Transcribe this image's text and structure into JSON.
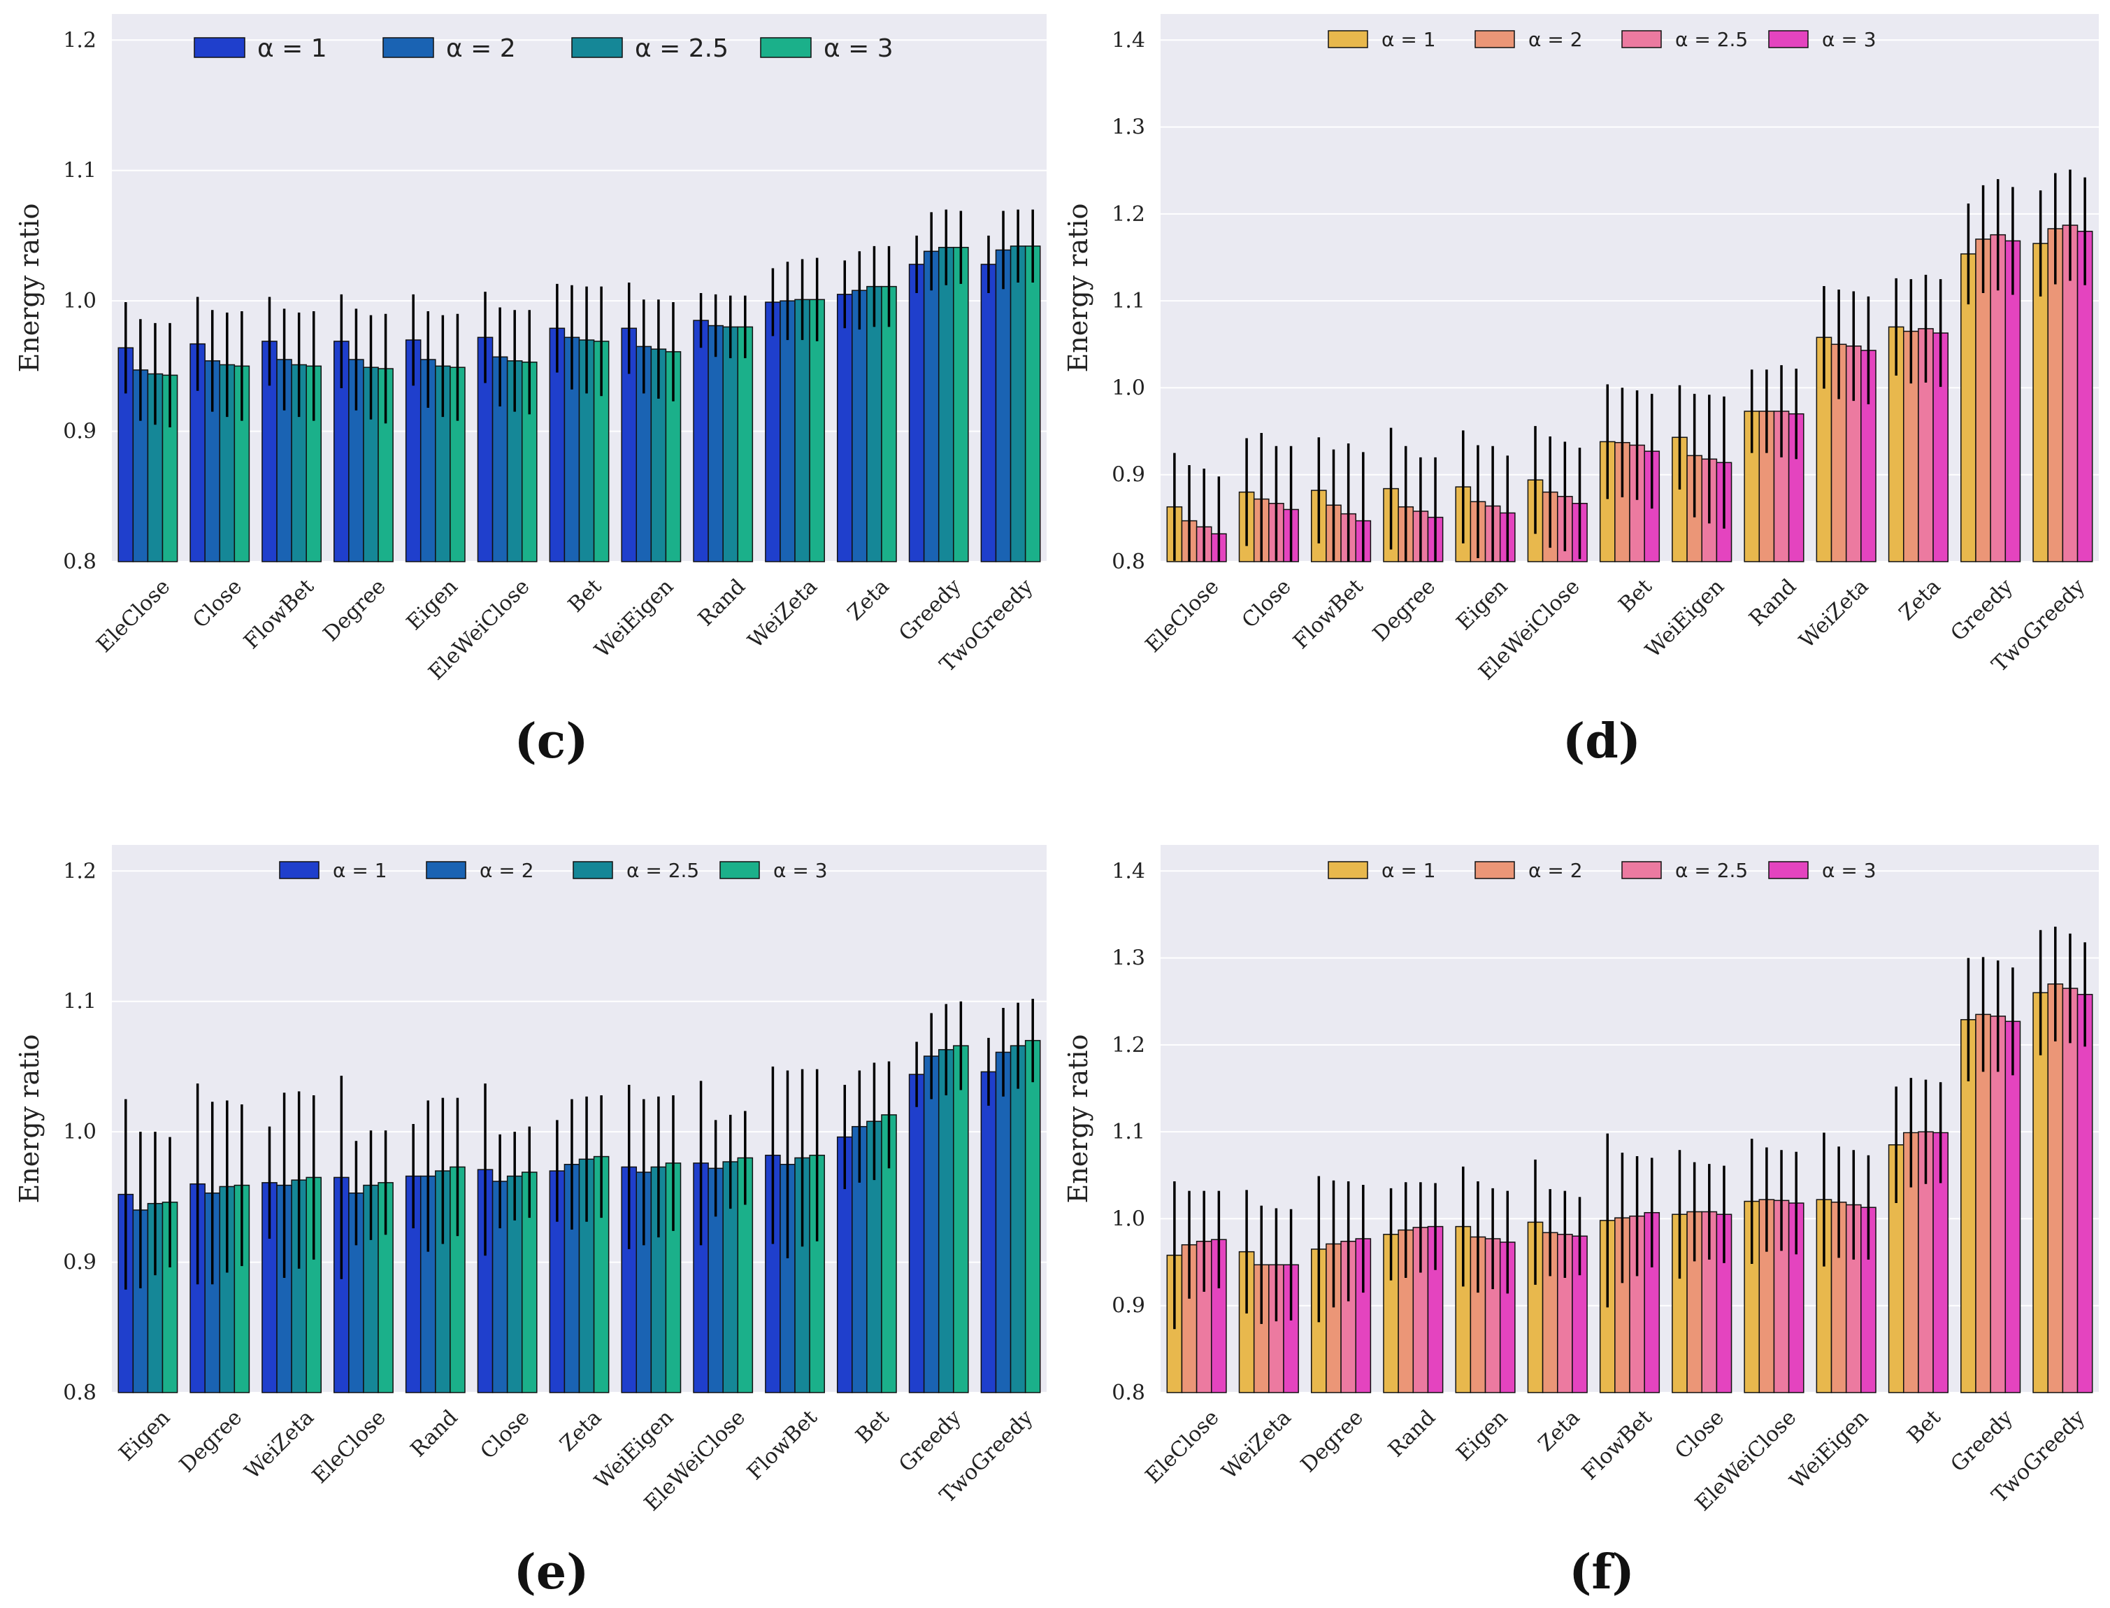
{
  "chart_data": [
    {
      "type": "bar",
      "panel_label": "(c)",
      "ylabel": "Energy ratio",
      "ylim": [
        0.8,
        1.22
      ],
      "yticks": [
        "0.8",
        "0.9",
        "1.0",
        "1.1",
        "1.2"
      ],
      "grid": true,
      "legend_position": "top",
      "categories": [
        "EleClose",
        "Close",
        "FlowBet",
        "Degree",
        "Eigen",
        "EleWeiClose",
        "Bet",
        "WeiEigen",
        "Rand",
        "WeiZeta",
        "Zeta",
        "Greedy",
        "TwoGreedy"
      ],
      "series": [
        {
          "name": "α = 1",
          "color": "#1f3fcc",
          "values": [
            0.964,
            0.967,
            0.969,
            0.969,
            0.97,
            0.972,
            0.979,
            0.979,
            0.985,
            0.999,
            1.005,
            1.028,
            1.028
          ],
          "errors": [
            0.035,
            0.036,
            0.034,
            0.036,
            0.035,
            0.035,
            0.034,
            0.035,
            0.021,
            0.026,
            0.026,
            0.022,
            0.022
          ]
        },
        {
          "name": "α = 2",
          "color": "#1a63b3",
          "values": [
            0.947,
            0.954,
            0.955,
            0.955,
            0.955,
            0.957,
            0.972,
            0.965,
            0.981,
            1.0,
            1.008,
            1.038,
            1.039
          ],
          "errors": [
            0.039,
            0.039,
            0.039,
            0.039,
            0.037,
            0.038,
            0.04,
            0.036,
            0.024,
            0.03,
            0.03,
            0.03,
            0.03
          ]
        },
        {
          "name": "α = 2.5",
          "color": "#158797",
          "values": [
            0.944,
            0.951,
            0.951,
            0.949,
            0.95,
            0.954,
            0.97,
            0.963,
            0.98,
            1.001,
            1.011,
            1.041,
            1.042
          ],
          "errors": [
            0.039,
            0.04,
            0.04,
            0.04,
            0.039,
            0.039,
            0.041,
            0.038,
            0.024,
            0.031,
            0.031,
            0.029,
            0.028
          ]
        },
        {
          "name": "α = 3",
          "color": "#1bb08a",
          "values": [
            0.943,
            0.95,
            0.95,
            0.948,
            0.949,
            0.953,
            0.969,
            0.961,
            0.98,
            1.001,
            1.011,
            1.041,
            1.042
          ],
          "errors": [
            0.04,
            0.042,
            0.042,
            0.042,
            0.041,
            0.04,
            0.042,
            0.038,
            0.024,
            0.032,
            0.031,
            0.028,
            0.028
          ]
        }
      ]
    },
    {
      "type": "bar",
      "panel_label": "(d)",
      "ylabel": "Energy ratio",
      "ylim": [
        0.8,
        1.43
      ],
      "yticks": [
        "0.8",
        "0.9",
        "1.0",
        "1.1",
        "1.2",
        "1.3",
        "1.4"
      ],
      "grid": true,
      "legend_position": "top",
      "categories": [
        "EleClose",
        "Close",
        "FlowBet",
        "Degree",
        "Eigen",
        "EleWeiClose",
        "Bet",
        "WeiEigen",
        "Rand",
        "WeiZeta",
        "Zeta",
        "Greedy",
        "TwoGreedy"
      ],
      "series": [
        {
          "name": "α = 1",
          "color": "#e8b84d",
          "values": [
            0.863,
            0.88,
            0.882,
            0.884,
            0.886,
            0.894,
            0.938,
            0.943,
            0.973,
            1.058,
            1.07,
            1.154,
            1.166
          ],
          "errors": [
            0.062,
            0.062,
            0.061,
            0.07,
            0.065,
            0.062,
            0.066,
            0.06,
            0.048,
            0.059,
            0.056,
            0.058,
            0.061
          ]
        },
        {
          "name": "α = 2",
          "color": "#eb9677",
          "values": [
            0.847,
            0.872,
            0.865,
            0.863,
            0.869,
            0.88,
            0.937,
            0.922,
            0.973,
            1.05,
            1.065,
            1.171,
            1.183
          ],
          "errors": [
            0.064,
            0.076,
            0.064,
            0.07,
            0.065,
            0.064,
            0.063,
            0.071,
            0.048,
            0.063,
            0.06,
            0.062,
            0.064
          ]
        },
        {
          "name": "α = 2.5",
          "color": "#ec7aa0",
          "values": [
            0.84,
            0.867,
            0.855,
            0.858,
            0.864,
            0.875,
            0.934,
            0.918,
            0.973,
            1.048,
            1.068,
            1.176,
            1.187
          ],
          "errors": [
            0.067,
            0.066,
            0.081,
            0.062,
            0.069,
            0.063,
            0.063,
            0.074,
            0.053,
            0.063,
            0.062,
            0.064,
            0.064
          ]
        },
        {
          "name": "α = 3",
          "color": "#e444bf",
          "values": [
            0.832,
            0.86,
            0.847,
            0.851,
            0.856,
            0.867,
            0.927,
            0.914,
            0.97,
            1.043,
            1.063,
            1.169,
            1.18
          ],
          "errors": [
            0.066,
            0.073,
            0.079,
            0.069,
            0.066,
            0.064,
            0.066,
            0.076,
            0.052,
            0.062,
            0.062,
            0.062,
            0.062
          ]
        }
      ]
    },
    {
      "type": "bar",
      "panel_label": "(e)",
      "ylabel": "Energy ratio",
      "ylim": [
        0.8,
        1.22
      ],
      "yticks": [
        "0.8",
        "0.9",
        "1.0",
        "1.1",
        "1.2"
      ],
      "grid": true,
      "legend_position": "top",
      "categories": [
        "Eigen",
        "Degree",
        "WeiZeta",
        "EleClose",
        "Rand",
        "Close",
        "Zeta",
        "WeiEigen",
        "EleWeiClose",
        "FlowBet",
        "Bet",
        "Greedy",
        "TwoGreedy"
      ],
      "series": [
        {
          "name": "α = 1",
          "color": "#1f3fcc",
          "values": [
            0.952,
            0.96,
            0.961,
            0.965,
            0.966,
            0.971,
            0.97,
            0.973,
            0.976,
            0.982,
            0.996,
            1.044,
            1.046
          ],
          "errors": [
            0.073,
            0.077,
            0.043,
            0.078,
            0.04,
            0.066,
            0.039,
            0.063,
            0.063,
            0.068,
            0.04,
            0.025,
            0.026
          ]
        },
        {
          "name": "α = 2",
          "color": "#1a63b3",
          "values": [
            0.94,
            0.953,
            0.959,
            0.953,
            0.966,
            0.962,
            0.975,
            0.969,
            0.972,
            0.975,
            1.004,
            1.058,
            1.061
          ],
          "errors": [
            0.06,
            0.07,
            0.071,
            0.04,
            0.058,
            0.036,
            0.05,
            0.056,
            0.037,
            0.072,
            0.043,
            0.033,
            0.034
          ]
        },
        {
          "name": "α = 2.5",
          "color": "#158797",
          "values": [
            0.945,
            0.958,
            0.963,
            0.959,
            0.97,
            0.966,
            0.979,
            0.973,
            0.977,
            0.98,
            1.008,
            1.063,
            1.066
          ],
          "errors": [
            0.055,
            0.066,
            0.068,
            0.042,
            0.056,
            0.034,
            0.048,
            0.054,
            0.036,
            0.068,
            0.045,
            0.035,
            0.033
          ]
        },
        {
          "name": "α = 3",
          "color": "#1bb08a",
          "values": [
            0.946,
            0.959,
            0.965,
            0.961,
            0.973,
            0.969,
            0.981,
            0.976,
            0.98,
            0.982,
            1.013,
            1.066,
            1.07
          ],
          "errors": [
            0.05,
            0.062,
            0.063,
            0.04,
            0.053,
            0.035,
            0.047,
            0.052,
            0.036,
            0.066,
            0.041,
            0.034,
            0.032
          ]
        }
      ]
    },
    {
      "type": "bar",
      "panel_label": "(f)",
      "ylabel": "Energy ratio",
      "ylim": [
        0.8,
        1.43
      ],
      "yticks": [
        "0.8",
        "0.9",
        "1.0",
        "1.1",
        "1.2",
        "1.3",
        "1.4"
      ],
      "grid": true,
      "legend_position": "top",
      "categories": [
        "EleClose",
        "WeiZeta",
        "Degree",
        "Rand",
        "Eigen",
        "Zeta",
        "FlowBet",
        "Close",
        "EleWeiClose",
        "WeiEigen",
        "Bet",
        "Greedy",
        "TwoGreedy"
      ],
      "series": [
        {
          "name": "α = 1",
          "color": "#e8b84d",
          "values": [
            0.958,
            0.962,
            0.965,
            0.982,
            0.991,
            0.996,
            0.998,
            1.005,
            1.02,
            1.022,
            1.085,
            1.229,
            1.26
          ],
          "errors": [
            0.085,
            0.071,
            0.084,
            0.053,
            0.069,
            0.072,
            0.1,
            0.074,
            0.072,
            0.077,
            0.067,
            0.071,
            0.072
          ]
        },
        {
          "name": "α = 2",
          "color": "#eb9677",
          "values": [
            0.97,
            0.947,
            0.971,
            0.987,
            0.979,
            0.984,
            1.001,
            1.008,
            1.022,
            1.019,
            1.099,
            1.235,
            1.27
          ],
          "errors": [
            0.062,
            0.068,
            0.073,
            0.055,
            0.064,
            0.05,
            0.075,
            0.057,
            0.06,
            0.064,
            0.063,
            0.066,
            0.066
          ]
        },
        {
          "name": "α = 2.5",
          "color": "#ec7aa0",
          "values": [
            0.974,
            0.947,
            0.974,
            0.99,
            0.977,
            0.982,
            1.003,
            1.008,
            1.021,
            1.016,
            1.1,
            1.233,
            1.265
          ],
          "errors": [
            0.058,
            0.065,
            0.069,
            0.052,
            0.058,
            0.05,
            0.069,
            0.055,
            0.058,
            0.063,
            0.06,
            0.064,
            0.063
          ]
        },
        {
          "name": "α = 3",
          "color": "#e444bf",
          "values": [
            0.976,
            0.947,
            0.977,
            0.991,
            0.973,
            0.98,
            1.007,
            1.005,
            1.018,
            1.013,
            1.099,
            1.227,
            1.258
          ],
          "errors": [
            0.056,
            0.064,
            0.062,
            0.05,
            0.059,
            0.045,
            0.063,
            0.056,
            0.059,
            0.06,
            0.058,
            0.062,
            0.06
          ]
        }
      ]
    }
  ]
}
